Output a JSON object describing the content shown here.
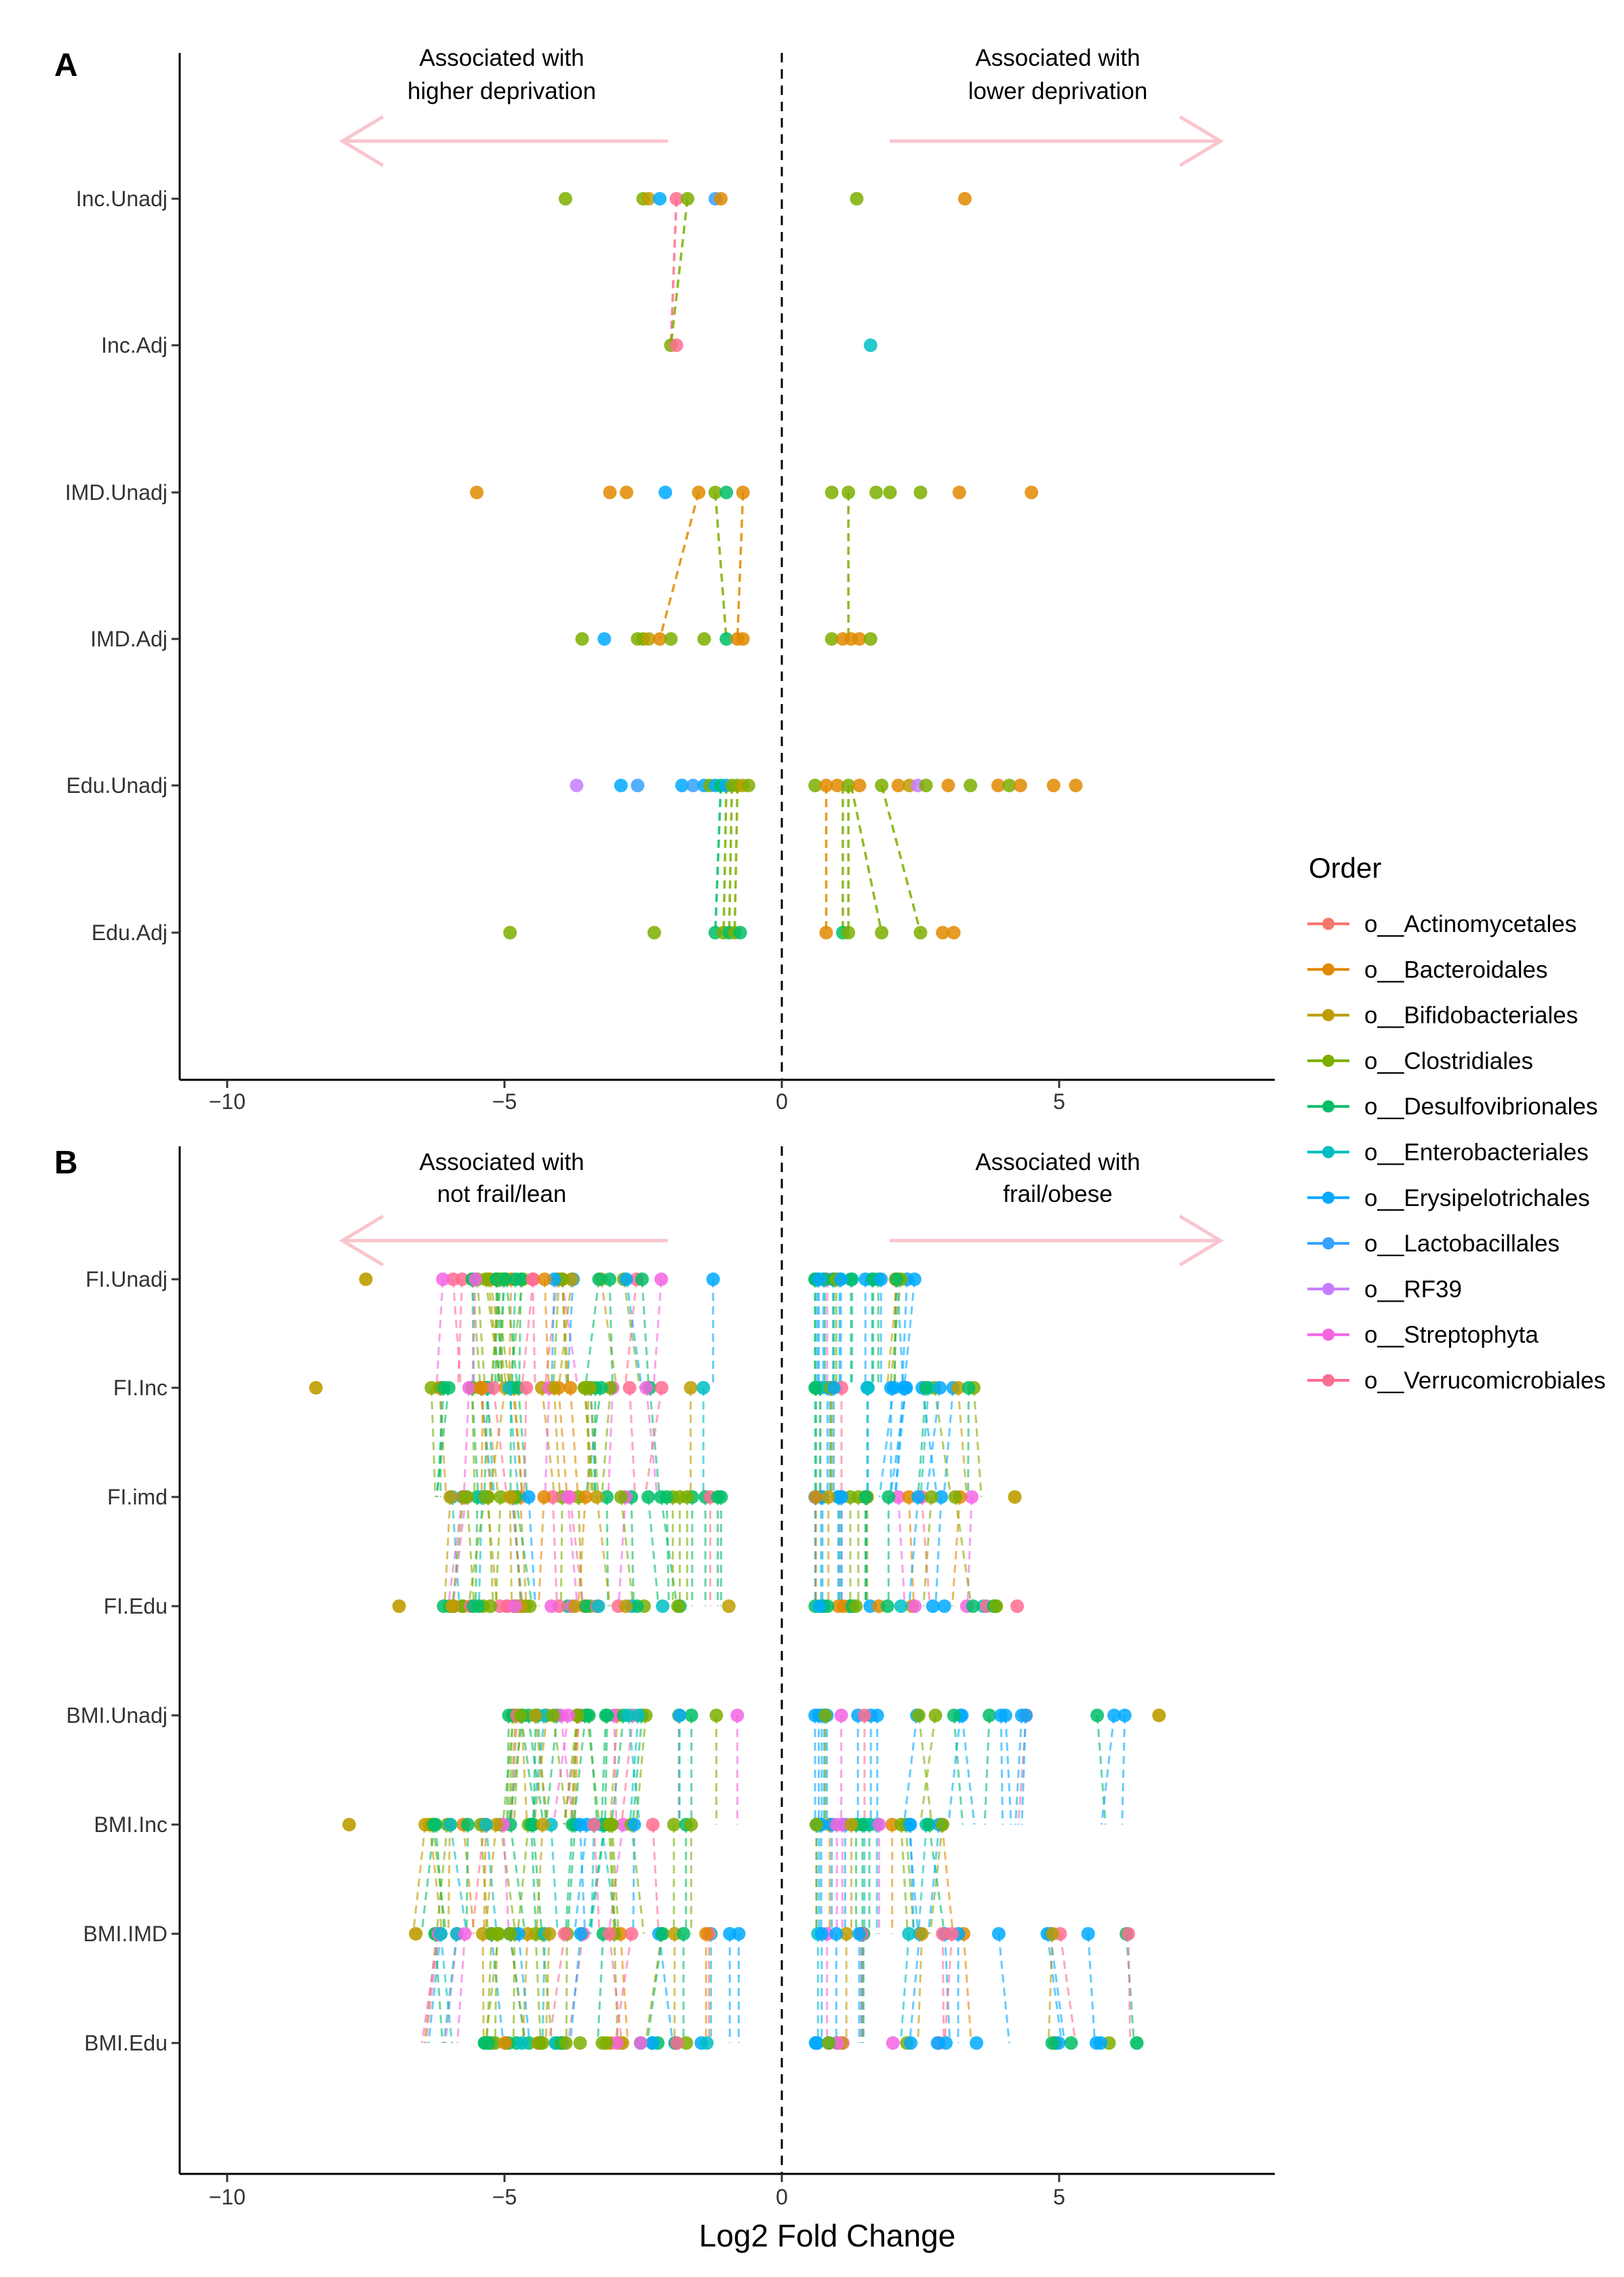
{
  "chart_data": [
    {
      "panel": "A",
      "type": "scatter",
      "xlim": [
        -11,
        9
      ],
      "xticks": [
        -10,
        -5,
        0,
        5
      ],
      "zero_line": "dashed",
      "categories": [
        "Inc.Unadj",
        "Inc.Adj",
        "IMD.Unadj",
        "IMD.Adj",
        "Edu.Unadj",
        "Edu.Adj"
      ],
      "annotations": [
        {
          "side": "left",
          "lines": [
            "Associated with",
            "higher deprivation"
          ],
          "arrow": "left"
        },
        {
          "side": "right",
          "lines": [
            "Associated with",
            "lower deprivation"
          ],
          "arrow": "right"
        }
      ],
      "points": {
        "Inc.Unadj": [
          {
            "x": -3.9,
            "order": "o__Clostridiales"
          },
          {
            "x": -2.5,
            "order": "o__Clostridiales"
          },
          {
            "x": -2.4,
            "order": "o__Bifidobacteriales"
          },
          {
            "x": -2.2,
            "order": "o__Erysipelotrichales"
          },
          {
            "x": -1.9,
            "order": "o__Verrucomicrobiales"
          },
          {
            "x": -1.7,
            "order": "o__Clostridiales"
          },
          {
            "x": -1.2,
            "order": "o__Lactobacillales"
          },
          {
            "x": -1.1,
            "order": "o__Bacteroidales"
          },
          {
            "x": 1.35,
            "order": "o__Clostridiales"
          },
          {
            "x": 3.3,
            "order": "o__Bacteroidales"
          }
        ],
        "Inc.Adj": [
          {
            "x": -2.0,
            "order": "o__Clostridiales"
          },
          {
            "x": -1.9,
            "order": "o__Verrucomicrobiales"
          },
          {
            "x": 1.6,
            "order": "o__Enterobacteriales"
          }
        ],
        "IMD.Unadj": [
          {
            "x": -5.5,
            "order": "o__Bacteroidales"
          },
          {
            "x": -3.1,
            "order": "o__Bacteroidales"
          },
          {
            "x": -2.8,
            "order": "o__Bacteroidales"
          },
          {
            "x": -2.1,
            "order": "o__Erysipelotrichales"
          },
          {
            "x": -1.5,
            "order": "o__Bacteroidales"
          },
          {
            "x": -1.2,
            "order": "o__Clostridiales"
          },
          {
            "x": -1.0,
            "order": "o__Desulfovibrionales"
          },
          {
            "x": -0.7,
            "order": "o__Bacteroidales"
          },
          {
            "x": 0.9,
            "order": "o__Clostridiales"
          },
          {
            "x": 1.2,
            "order": "o__Clostridiales"
          },
          {
            "x": 1.7,
            "order": "o__Clostridiales"
          },
          {
            "x": 1.95,
            "order": "o__Clostridiales"
          },
          {
            "x": 2.5,
            "order": "o__Clostridiales"
          },
          {
            "x": 3.2,
            "order": "o__Bacteroidales"
          },
          {
            "x": 4.5,
            "order": "o__Bacteroidales"
          }
        ],
        "IMD.Adj": [
          {
            "x": -3.6,
            "order": "o__Clostridiales"
          },
          {
            "x": -3.2,
            "order": "o__Erysipelotrichales"
          },
          {
            "x": -2.6,
            "order": "o__Clostridiales"
          },
          {
            "x": -2.5,
            "order": "o__Clostridiales"
          },
          {
            "x": -2.4,
            "order": "o__Bifidobacteriales"
          },
          {
            "x": -2.2,
            "order": "o__Bacteroidales"
          },
          {
            "x": -2.0,
            "order": "o__Clostridiales"
          },
          {
            "x": -1.4,
            "order": "o__Clostridiales"
          },
          {
            "x": -1.0,
            "order": "o__Desulfovibrionales"
          },
          {
            "x": -0.8,
            "order": "o__Bacteroidales"
          },
          {
            "x": -0.7,
            "order": "o__Bacteroidales"
          },
          {
            "x": 0.9,
            "order": "o__Clostridiales"
          },
          {
            "x": 1.1,
            "order": "o__Bacteroidales"
          },
          {
            "x": 1.25,
            "order": "o__Bacteroidales"
          },
          {
            "x": 1.4,
            "order": "o__Bacteroidales"
          },
          {
            "x": 1.6,
            "order": "o__Clostridiales"
          }
        ],
        "Edu.Unadj": [
          {
            "x": -3.7,
            "order": "o__RF39"
          },
          {
            "x": -2.9,
            "order": "o__Erysipelotrichales"
          },
          {
            "x": -2.6,
            "order": "o__Lactobacillales"
          },
          {
            "x": -1.8,
            "order": "o__Erysipelotrichales"
          },
          {
            "x": -1.6,
            "order": "o__Lactobacillales"
          },
          {
            "x": -1.4,
            "order": "o__Erysipelotrichales"
          },
          {
            "x": -1.3,
            "order": "o__Clostridiales"
          },
          {
            "x": -1.2,
            "order": "o__Erysipelotrichales"
          },
          {
            "x": -1.1,
            "order": "o__Desulfovibrionales"
          },
          {
            "x": -1.0,
            "order": "o__Erysipelotrichales"
          },
          {
            "x": -0.9,
            "order": "o__Clostridiales"
          },
          {
            "x": -0.8,
            "order": "o__Clostridiales"
          },
          {
            "x": -0.7,
            "order": "o__Bifidobacteriales"
          },
          {
            "x": -0.6,
            "order": "o__Clostridiales"
          },
          {
            "x": 0.6,
            "order": "o__Clostridiales"
          },
          {
            "x": 0.8,
            "order": "o__Bacteroidales"
          },
          {
            "x": 1.0,
            "order": "o__Bacteroidales"
          },
          {
            "x": 1.2,
            "order": "o__Clostridiales"
          },
          {
            "x": 1.4,
            "order": "o__Bacteroidales"
          },
          {
            "x": 1.8,
            "order": "o__Clostridiales"
          },
          {
            "x": 2.1,
            "order": "o__Bacteroidales"
          },
          {
            "x": 2.3,
            "order": "o__Bifidobacteriales"
          },
          {
            "x": 2.45,
            "order": "o__RF39"
          },
          {
            "x": 2.6,
            "order": "o__Clostridiales"
          },
          {
            "x": 3.0,
            "order": "o__Bacteroidales"
          },
          {
            "x": 3.4,
            "order": "o__Clostridiales"
          },
          {
            "x": 3.9,
            "order": "o__Bacteroidales"
          },
          {
            "x": 4.1,
            "order": "o__Clostridiales"
          },
          {
            "x": 4.3,
            "order": "o__Bacteroidales"
          },
          {
            "x": 4.9,
            "order": "o__Bacteroidales"
          },
          {
            "x": 5.3,
            "order": "o__Bacteroidales"
          }
        ],
        "Edu.Adj": [
          {
            "x": -4.9,
            "order": "o__Clostridiales"
          },
          {
            "x": -2.3,
            "order": "o__Clostridiales"
          },
          {
            "x": -1.2,
            "order": "o__Desulfovibrionales"
          },
          {
            "x": -1.05,
            "order": "o__Clostridiales"
          },
          {
            "x": -0.95,
            "order": "o__Desulfovibrionales"
          },
          {
            "x": -0.85,
            "order": "o__Clostridiales"
          },
          {
            "x": -0.75,
            "order": "o__Desulfovibrionales"
          },
          {
            "x": 0.8,
            "order": "o__Bacteroidales"
          },
          {
            "x": 1.1,
            "order": "o__Desulfovibrionales"
          },
          {
            "x": 1.2,
            "order": "o__Clostridiales"
          },
          {
            "x": 1.8,
            "order": "o__Clostridiales"
          },
          {
            "x": 2.5,
            "order": "o__Clostridiales"
          },
          {
            "x": 2.9,
            "order": "o__Bacteroidales"
          },
          {
            "x": 3.1,
            "order": "o__Bacteroidales"
          }
        ]
      },
      "segments": [
        {
          "from": "Inc.Unadj",
          "to": "Inc.Adj",
          "x1": -1.9,
          "x2": -2.0,
          "order": "o__Verrucomicrobiales"
        },
        {
          "from": "Inc.Unadj",
          "to": "Inc.Adj",
          "x1": -1.7,
          "x2": -2.0,
          "order": "o__Clostridiales"
        },
        {
          "from": "IMD.Unadj",
          "to": "IMD.Adj",
          "x1": -1.5,
          "x2": -2.2,
          "order": "o__Bacteroidales"
        },
        {
          "from": "IMD.Unadj",
          "to": "IMD.Adj",
          "x1": -1.2,
          "x2": -1.0,
          "order": "o__Clostridiales"
        },
        {
          "from": "IMD.Unadj",
          "to": "IMD.Adj",
          "x1": -0.7,
          "x2": -0.8,
          "order": "o__Bacteroidales"
        },
        {
          "from": "IMD.Unadj",
          "to": "IMD.Adj",
          "x1": 1.2,
          "x2": 1.2,
          "order": "o__Clostridiales"
        },
        {
          "from": "Edu.Unadj",
          "to": "Edu.Adj",
          "x1": -1.1,
          "x2": -1.2,
          "order": "o__Desulfovibrionales"
        },
        {
          "from": "Edu.Unadj",
          "to": "Edu.Adj",
          "x1": -1.0,
          "x2": -1.05,
          "order": "o__Clostridiales"
        },
        {
          "from": "Edu.Unadj",
          "to": "Edu.Adj",
          "x1": -0.9,
          "x2": -0.95,
          "order": "o__Clostridiales"
        },
        {
          "from": "Edu.Unadj",
          "to": "Edu.Adj",
          "x1": -0.8,
          "x2": -0.85,
          "order": "o__Clostridiales"
        },
        {
          "from": "Edu.Unadj",
          "to": "Edu.Adj",
          "x1": 0.8,
          "x2": 0.8,
          "order": "o__Bacteroidales"
        },
        {
          "from": "Edu.Unadj",
          "to": "Edu.Adj",
          "x1": 1.1,
          "x2": 1.1,
          "order": "o__Clostridiales"
        },
        {
          "from": "Edu.Unadj",
          "to": "Edu.Adj",
          "x1": 1.2,
          "x2": 1.2,
          "order": "o__Clostridiales"
        },
        {
          "from": "Edu.Unadj",
          "to": "Edu.Adj",
          "x1": 1.25,
          "x2": 1.8,
          "order": "o__Clostridiales"
        },
        {
          "from": "Edu.Unadj",
          "to": "Edu.Adj",
          "x1": 1.8,
          "x2": 2.5,
          "order": "o__Clostridiales"
        }
      ]
    },
    {
      "panel": "B",
      "type": "scatter",
      "xlim": [
        -11,
        9
      ],
      "xticks": [
        -10,
        -5,
        0,
        5
      ],
      "zero_line": "dashed",
      "xlabel": "Log2 Fold Change",
      "categories": [
        "FI.Unadj",
        "FI.Inc",
        "FI.imd",
        "FI.Edu",
        "BMI.Unadj",
        "BMI.Inc",
        "BMI.IMD",
        "BMI.Edu"
      ],
      "annotations": [
        {
          "side": "left",
          "lines": [
            "Associated with",
            "not frail/lean"
          ],
          "arrow": "left"
        },
        {
          "side": "right",
          "lines": [
            "Associated with",
            "frail/obese"
          ],
          "arrow": "right"
        }
      ],
      "dense_bands": [
        {
          "category": "FI.Unadj",
          "left": [
            -6.2,
            -0.7
          ],
          "right": [
            0.6,
            2.7
          ]
        },
        {
          "category": "FI.Inc",
          "left": [
            -6.4,
            -0.8
          ],
          "right": [
            0.6,
            3.5
          ]
        },
        {
          "category": "FI.imd",
          "left": [
            -6.0,
            -0.7
          ],
          "right": [
            0.6,
            3.6
          ]
        },
        {
          "category": "FI.Edu",
          "left": [
            -6.3,
            -0.7
          ],
          "right": [
            0.6,
            4.3
          ]
        },
        {
          "category": "BMI.Unadj",
          "left": [
            -5.0,
            -0.7
          ],
          "right": [
            0.6,
            6.8
          ]
        },
        {
          "category": "BMI.Inc",
          "left": [
            -6.5,
            -1.2
          ],
          "right": [
            0.6,
            3.0
          ]
        },
        {
          "category": "BMI.IMD",
          "left": [
            -6.5,
            -0.6
          ],
          "right": [
            0.6,
            6.8
          ]
        },
        {
          "category": "BMI.Edu",
          "left": [
            -5.5,
            -0.9
          ],
          "right": [
            0.6,
            6.4
          ]
        }
      ],
      "outliers": [
        {
          "category": "FI.Unadj",
          "x": -7.5,
          "order": "o__Bifidobacteriales"
        },
        {
          "category": "FI.Inc",
          "x": -8.4,
          "order": "o__Bifidobacteriales"
        },
        {
          "category": "FI.imd",
          "x": 4.2,
          "order": "o__Bifidobacteriales"
        },
        {
          "category": "FI.Edu",
          "x": -6.9,
          "order": "o__Bifidobacteriales"
        },
        {
          "category": "BMI.Unadj",
          "x": 6.8,
          "order": "o__Bifidobacteriales"
        },
        {
          "category": "BMI.Inc",
          "x": -7.8,
          "order": "o__Bifidobacteriales"
        },
        {
          "category": "BMI.IMD",
          "x": -6.6,
          "order": "o__Bifidobacteriales"
        },
        {
          "category": "BMI.Edu",
          "x": 6.4,
          "order": "o__Desulfovibrionales"
        }
      ]
    }
  ],
  "legend": {
    "title": "Order",
    "placement": "right",
    "items": [
      {
        "label": "o__Actinomycetales",
        "color": "#F8766D"
      },
      {
        "label": "o__Bacteroidales",
        "color": "#E18A00"
      },
      {
        "label": "o__Bifidobacteriales",
        "color": "#BE9C00"
      },
      {
        "label": "o__Clostridiales",
        "color": "#7CAE00"
      },
      {
        "label": "o__Desulfovibrionales",
        "color": "#00BE67"
      },
      {
        "label": "o__Enterobacteriales",
        "color": "#00BFC4"
      },
      {
        "label": "o__Erysipelotrichales",
        "color": "#00A9FF"
      },
      {
        "label": "o__Lactobacillales",
        "color": "#35A2FF"
      },
      {
        "label": "o__RF39",
        "color": "#C77CFF"
      },
      {
        "label": "o__Streptophyta",
        "color": "#F564E3"
      },
      {
        "label": "o__Verrucomicrobiales",
        "color": "#FF6C91"
      }
    ]
  },
  "colors": {
    "arrow": "#F9C5CD",
    "axis": "#000000",
    "zero_line": "#000000"
  }
}
